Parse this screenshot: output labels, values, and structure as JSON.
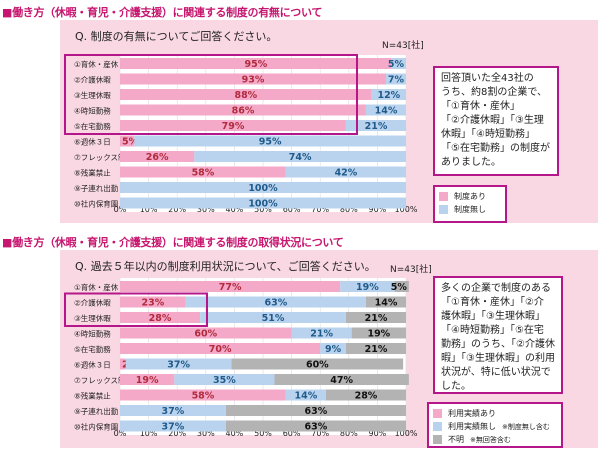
{
  "section1": {
    "title": "■働き方（休暇・育児・介護支援）に関連する制度の有無について",
    "question": "Q.  制度の有無についてご回答ください。",
    "n": "N=43[社]",
    "note_lines": [
      "回答頂いた全43社の",
      "うち、約8割の企業で、",
      "「①育休・産休」",
      "「②介護休暇」「③生理",
      "休暇」「④時短勤務」",
      "「⑤在宅勤務」の制度が",
      "ありました。"
    ]
  },
  "section2": {
    "title": "■働き方（休暇・育児・介護支援）に関連する制度の取得状況について",
    "question": "Q.  過去５年以内の制度利用状況について、ご回答ください。",
    "n": "N=43[社]",
    "note_lines": [
      "多くの企業で制度のある",
      "「①育休・産休」「②介",
      "護休暇」「③生理休暇」",
      "「④時短勤務」「⑤在宅",
      "勤務」のうち、「②介護休",
      "暇」「③生理休暇」の利用",
      "状況が、特に低い状況で",
      "した。"
    ]
  },
  "colors": {
    "pink": "#f4a9c8",
    "blue": "#b9d3ee",
    "gray": "#b3b3b3",
    "accent": "#c7166f",
    "frame": "#b5178a",
    "label_pink": "#b22a3d",
    "label_blue": "#1f5a8a"
  },
  "chart_data": [
    {
      "type": "bar",
      "orientation": "horizontal",
      "stacked": true,
      "categories": [
        "①育休・産休",
        "②介護休暇",
        "③生理休暇",
        "④時短勤務",
        "⑤在宅勤務",
        "⑥週休３日",
        "⑦フレックス制",
        "⑧残業禁止",
        "⑨子連れ出勤",
        "⑩社内保育園"
      ],
      "series": [
        {
          "name": "制度あり",
          "values": [
            95,
            93,
            88,
            86,
            79,
            5,
            26,
            58,
            0,
            0
          ]
        },
        {
          "name": "制度無し",
          "values": [
            5,
            7,
            12,
            14,
            21,
            95,
            74,
            42,
            100,
            100
          ]
        }
      ],
      "xlim": [
        0,
        100
      ],
      "xticks": [
        "0%",
        "10%",
        "20%",
        "30%",
        "40%",
        "50%",
        "60%",
        "70%",
        "80%",
        "90%",
        "100%"
      ],
      "value_suffix": "%",
      "highlighted_categories": [
        0,
        1,
        2,
        3,
        4
      ],
      "legend_position": "right"
    },
    {
      "type": "bar",
      "orientation": "horizontal",
      "stacked": true,
      "categories": [
        "①育休・産休",
        "②介護休暇",
        "③生理休暇",
        "④時短勤務",
        "⑤在宅勤務",
        "⑥週休３日",
        "⑦フレックス制",
        "⑧残業禁止",
        "⑨子連れ出勤",
        "⑩社内保育園"
      ],
      "series": [
        {
          "name": "利用実績あり",
          "values": [
            77,
            23,
            28,
            60,
            70,
            2,
            19,
            58,
            0,
            0
          ]
        },
        {
          "name": "利用実績無し",
          "note": "※制度無し含む",
          "values": [
            19,
            63,
            51,
            21,
            9,
            37,
            35,
            14,
            37,
            37
          ]
        },
        {
          "name": "不明",
          "note": "※無回答含む",
          "values": [
            5,
            14,
            21,
            19,
            21,
            60,
            47,
            28,
            63,
            63
          ]
        }
      ],
      "xlim": [
        0,
        100
      ],
      "xticks": [
        "0%",
        "10%",
        "20%",
        "30%",
        "40%",
        "50%",
        "60%",
        "70%",
        "80%",
        "90%",
        "100%"
      ],
      "value_suffix": "%",
      "highlighted_categories": [
        1,
        2
      ],
      "legend_position": "right"
    }
  ]
}
